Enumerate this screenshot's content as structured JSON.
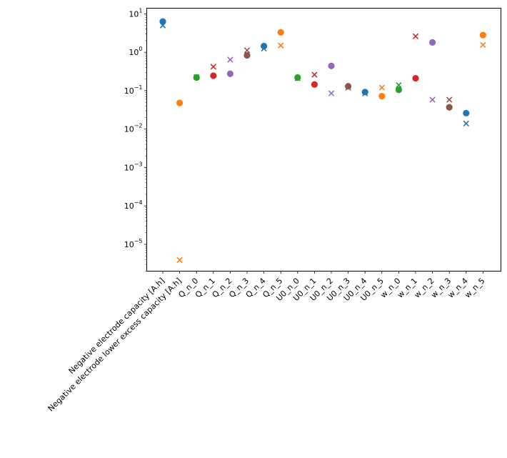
{
  "chart_data": {
    "type": "scatter",
    "yscale": "log",
    "ylim": [
      2e-06,
      14
    ],
    "yticks": [
      {
        "value": 1e-05,
        "base": "10",
        "exp": "−5"
      },
      {
        "value": 0.0001,
        "base": "10",
        "exp": "−4"
      },
      {
        "value": 0.001,
        "base": "10",
        "exp": "−3"
      },
      {
        "value": 0.01,
        "base": "10",
        "exp": "−2"
      },
      {
        "value": 0.1,
        "base": "10",
        "exp": "−1"
      },
      {
        "value": 1,
        "base": "10",
        "exp": "0"
      },
      {
        "value": 10,
        "base": "10",
        "exp": "1"
      }
    ],
    "categories": [
      "Negative electrode capacity [A.h]",
      "Negative electrode lower excess capacity [A.h]",
      "Q_n_0",
      "Q_n_1",
      "Q_n_2",
      "Q_n_3",
      "Q_n_4",
      "Q_n_5",
      "U0_n_0",
      "U0_n_1",
      "U0_n_2",
      "U0_n_3",
      "U0_n_4",
      "U0_n_5",
      "w_n_0",
      "w_n_1",
      "w_n_2",
      "w_n_3",
      "w_n_4",
      "w_n_5"
    ],
    "colors": [
      "#1f77b4",
      "#ff7f0e",
      "#2ca02c",
      "#d62728",
      "#9467bd",
      "#8c564b"
    ],
    "circle_values": [
      6.3,
      0.048,
      0.22,
      0.245,
      0.275,
      0.83,
      1.45,
      3.3,
      0.22,
      0.145,
      0.44,
      0.13,
      0.092,
      0.072,
      0.105,
      0.21,
      1.8,
      0.037,
      0.026,
      2.8
    ],
    "x_values": [
      5.0,
      3.9e-06,
      0.225,
      0.42,
      0.64,
      1.12,
      1.25,
      1.5,
      0.21,
      0.26,
      0.085,
      0.12,
      0.085,
      0.12,
      0.14,
      2.6,
      0.058,
      0.058,
      0.014,
      1.55
    ],
    "grid": false,
    "legend": "none"
  }
}
